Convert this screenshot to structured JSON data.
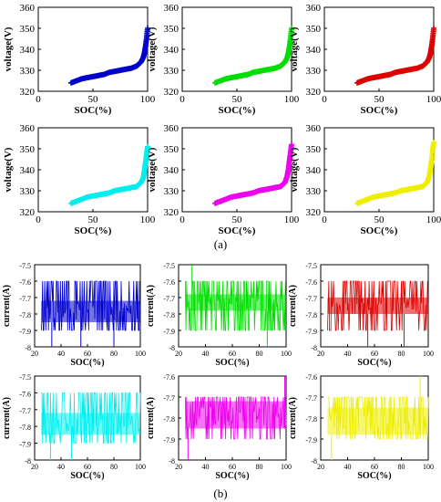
{
  "figure": {
    "panel_labels": [
      "(a)",
      "(b)"
    ]
  },
  "chart_data": [
    {
      "panel": "(a)",
      "type": "scatter",
      "color": "#0000cc",
      "xlabel": "SOC(%)",
      "ylabel": "voltage(V)",
      "xlim": [
        0,
        100
      ],
      "ylim": [
        320,
        360
      ],
      "xticks": [
        "0",
        "50",
        "100"
      ],
      "yticks": [
        "320",
        "330",
        "340",
        "350",
        "360"
      ],
      "x": [
        30,
        35,
        40,
        45,
        50,
        55,
        60,
        65,
        70,
        75,
        80,
        85,
        90,
        92,
        94,
        96,
        97,
        98,
        99,
        100
      ],
      "y": [
        324,
        325,
        326,
        326.5,
        327,
        327.5,
        328,
        329,
        329.5,
        330,
        330.5,
        331,
        332,
        333,
        334,
        336,
        338,
        341,
        345,
        350
      ]
    },
    {
      "panel": "(a)",
      "type": "scatter",
      "color": "#00dd00",
      "xlabel": "SOC(%)",
      "ylabel": "voltage(V)",
      "xlim": [
        0,
        100
      ],
      "ylim": [
        320,
        360
      ],
      "xticks": [
        "0",
        "50",
        "100"
      ],
      "yticks": [
        "320",
        "330",
        "340",
        "350",
        "360"
      ],
      "x": [
        30,
        35,
        40,
        45,
        50,
        55,
        60,
        65,
        70,
        75,
        80,
        85,
        90,
        92,
        94,
        96,
        97,
        98,
        99,
        100
      ],
      "y": [
        324,
        325,
        326,
        326.5,
        327,
        327.5,
        328,
        329,
        329.5,
        330,
        330.5,
        331,
        332,
        333,
        334,
        336,
        338,
        341,
        345,
        350
      ]
    },
    {
      "panel": "(a)",
      "type": "scatter",
      "color": "#dd0000",
      "xlabel": "SOC(%)",
      "ylabel": "voltage(V)",
      "xlim": [
        0,
        100
      ],
      "ylim": [
        320,
        360
      ],
      "xticks": [
        "0",
        "50",
        "100"
      ],
      "yticks": [
        "320",
        "330",
        "340",
        "350",
        "360"
      ],
      "x": [
        30,
        35,
        40,
        45,
        50,
        55,
        60,
        65,
        70,
        75,
        80,
        85,
        90,
        92,
        94,
        96,
        97,
        98,
        99,
        100
      ],
      "y": [
        324,
        325,
        326,
        326.5,
        327,
        327.5,
        328,
        329,
        329.5,
        330,
        330.5,
        331,
        332,
        333,
        334,
        336,
        338,
        341,
        345,
        350
      ]
    },
    {
      "panel": "(a)",
      "type": "scatter",
      "color": "#00eeee",
      "xlabel": "SOC(%)",
      "ylabel": "voltage(V)",
      "xlim": [
        0,
        100
      ],
      "ylim": [
        320,
        360
      ],
      "xticks": [
        "0",
        "50",
        "100"
      ],
      "yticks": [
        "320",
        "330",
        "340",
        "350",
        "360"
      ],
      "x": [
        30,
        35,
        40,
        45,
        50,
        55,
        60,
        65,
        70,
        75,
        80,
        85,
        90,
        92,
        94,
        96,
        97,
        98,
        99,
        100
      ],
      "y": [
        324,
        325,
        326,
        327,
        327.5,
        328,
        328.5,
        329,
        330,
        330.5,
        331,
        331.5,
        332,
        333,
        334,
        336,
        339,
        343,
        347,
        351
      ]
    },
    {
      "panel": "(a)",
      "type": "scatter",
      "color": "#ee00ee",
      "xlabel": "SOC(%)",
      "ylabel": "voltage(V)",
      "xlim": [
        0,
        100
      ],
      "ylim": [
        320,
        360
      ],
      "xticks": [
        "0",
        "50",
        "100"
      ],
      "yticks": [
        "320",
        "330",
        "340",
        "350",
        "360"
      ],
      "x": [
        30,
        35,
        40,
        45,
        50,
        55,
        60,
        65,
        70,
        75,
        80,
        85,
        90,
        92,
        94,
        96,
        97,
        98,
        99,
        100
      ],
      "y": [
        324,
        325,
        326,
        327,
        327.5,
        328,
        328.5,
        329,
        330,
        330.5,
        331,
        331.5,
        332,
        333,
        334,
        337,
        340,
        344,
        348,
        352
      ]
    },
    {
      "panel": "(a)",
      "type": "scatter",
      "color": "#eeee00",
      "xlabel": "SOC(%)",
      "ylabel": "voltage(V)",
      "xlim": [
        0,
        100
      ],
      "ylim": [
        320,
        360
      ],
      "xticks": [
        "0",
        "50",
        "100"
      ],
      "yticks": [
        "320",
        "330",
        "340",
        "350",
        "360"
      ],
      "x": [
        30,
        35,
        40,
        45,
        50,
        55,
        60,
        65,
        70,
        75,
        80,
        85,
        90,
        92,
        94,
        96,
        97,
        98,
        99,
        100
      ],
      "y": [
        324,
        325,
        326,
        327,
        327.5,
        328,
        328.5,
        329,
        330,
        330.5,
        331,
        331.5,
        332,
        333,
        334,
        337,
        340,
        344,
        349,
        353
      ]
    },
    {
      "panel": "(b)",
      "type": "line",
      "color": "#0000cc",
      "xlabel": "SOC(%)",
      "ylabel": "current(A)",
      "xlim": [
        20,
        100
      ],
      "ylim": [
        -8,
        -7.5
      ],
      "xticks": [
        "20",
        "40",
        "60",
        "80",
        "100"
      ],
      "yticks": [
        "-7.5",
        "-7.6",
        "-7.7",
        "-7.8",
        "-7.9",
        "-8"
      ],
      "x": [
        25,
        30,
        35,
        40,
        45,
        50,
        55,
        60,
        65,
        70,
        75,
        80,
        85,
        90,
        95,
        100
      ],
      "y_min": [
        -7.9,
        -7.9,
        -7.9,
        -7.9,
        -7.9,
        -7.9,
        -7.9,
        -7.9,
        -7.9,
        -7.9,
        -7.9,
        -7.9,
        -7.9,
        -7.9,
        -7.9,
        -7.9
      ],
      "y_max": [
        -7.6,
        -7.6,
        -7.6,
        -7.6,
        -7.6,
        -7.6,
        -7.6,
        -7.6,
        -7.6,
        -7.6,
        -7.6,
        -7.6,
        -7.6,
        -7.6,
        -7.6,
        -7.6
      ],
      "band": [
        -7.85,
        -7.72
      ],
      "spikes": [
        {
          "x": 33,
          "y": -8
        },
        {
          "x": 55,
          "y": -8
        },
        {
          "x": 80,
          "y": -8
        }
      ]
    },
    {
      "panel": "(b)",
      "type": "line",
      "color": "#00dd00",
      "xlabel": "SOC(%)",
      "ylabel": "current(A)",
      "xlim": [
        20,
        100
      ],
      "ylim": [
        -8,
        -7.5
      ],
      "xticks": [
        "20",
        "40",
        "60",
        "80",
        "100"
      ],
      "yticks": [
        "-7.5",
        "-7.6",
        "-7.7",
        "-7.8",
        "-7.9",
        "-8"
      ],
      "x": [
        25,
        30,
        35,
        40,
        45,
        50,
        55,
        60,
        65,
        70,
        75,
        80,
        85,
        90,
        95,
        100
      ],
      "y_min": [
        -7.9,
        -7.9,
        -7.9,
        -7.9,
        -7.9,
        -7.9,
        -7.9,
        -7.9,
        -7.9,
        -7.9,
        -7.9,
        -7.9,
        -7.9,
        -7.9,
        -7.9,
        -7.9
      ],
      "y_max": [
        -7.6,
        -7.6,
        -7.6,
        -7.6,
        -7.6,
        -7.6,
        -7.6,
        -7.6,
        -7.6,
        -7.6,
        -7.6,
        -7.6,
        -7.6,
        -7.6,
        -7.6,
        -7.6
      ],
      "band": [
        -7.78,
        -7.68
      ],
      "spikes": [
        {
          "x": 30,
          "y": -7.5
        },
        {
          "x": 86,
          "y": -8
        }
      ]
    },
    {
      "panel": "(b)",
      "type": "line",
      "color": "#dd0000",
      "xlabel": "SOC(%)",
      "ylabel": "current(A)",
      "xlim": [
        20,
        100
      ],
      "ylim": [
        -8,
        -7.5
      ],
      "xticks": [
        "20",
        "40",
        "60",
        "80",
        "100"
      ],
      "yticks": [
        "-7.5",
        "-7.6",
        "-7.7",
        "-7.8",
        "-7.9",
        "-8"
      ],
      "x": [
        25,
        30,
        35,
        40,
        45,
        50,
        55,
        60,
        65,
        70,
        75,
        80,
        85,
        90,
        95,
        100
      ],
      "y_min": [
        -7.9,
        -7.9,
        -7.9,
        -7.9,
        -7.9,
        -7.9,
        -7.9,
        -7.9,
        -7.9,
        -7.9,
        -7.9,
        -7.9,
        -7.9,
        -7.9,
        -7.9,
        -7.9
      ],
      "y_max": [
        -7.6,
        -7.6,
        -7.6,
        -7.6,
        -7.6,
        -7.6,
        -7.6,
        -7.6,
        -7.6,
        -7.6,
        -7.6,
        -7.6,
        -7.6,
        -7.6,
        -7.6,
        -7.6
      ],
      "band": [
        -7.8,
        -7.7
      ],
      "spikes": [
        {
          "x": 55,
          "y": -8
        },
        {
          "x": 82,
          "y": -8
        }
      ]
    },
    {
      "panel": "(b)",
      "type": "line",
      "color": "#00eeee",
      "xlabel": "SOC(%)",
      "ylabel": "current(A)",
      "xlim": [
        20,
        100
      ],
      "ylim": [
        -8,
        -7.5
      ],
      "xticks": [
        "20",
        "40",
        "60",
        "80",
        "100"
      ],
      "yticks": [
        "-7.5",
        "-7.6",
        "-7.7",
        "-7.8",
        "-7.9",
        "-8"
      ],
      "x": [
        25,
        30,
        35,
        40,
        45,
        50,
        55,
        60,
        65,
        70,
        75,
        80,
        85,
        90,
        95,
        100
      ],
      "y_min": [
        -7.9,
        -7.9,
        -7.9,
        -7.9,
        -7.9,
        -7.9,
        -7.9,
        -7.9,
        -7.9,
        -7.9,
        -7.9,
        -7.9,
        -7.9,
        -7.9,
        -7.9,
        -7.9
      ],
      "y_max": [
        -7.6,
        -7.6,
        -7.6,
        -7.6,
        -7.6,
        -7.6,
        -7.6,
        -7.6,
        -7.6,
        -7.6,
        -7.6,
        -7.6,
        -7.6,
        -7.6,
        -7.6,
        -7.6
      ],
      "band": [
        -7.85,
        -7.72
      ],
      "spikes": [
        {
          "x": 32,
          "y": -8
        },
        {
          "x": 48,
          "y": -8
        }
      ]
    },
    {
      "panel": "(b)",
      "type": "line",
      "color": "#ee00ee",
      "xlabel": "SOC(%)",
      "ylabel": "current(A)",
      "xlim": [
        20,
        100
      ],
      "ylim": [
        -8,
        -7.6
      ],
      "xticks": [
        "20",
        "40",
        "60",
        "80",
        "100"
      ],
      "yticks": [
        "-7.6",
        "-7.7",
        "-7.8",
        "-7.9",
        "-8"
      ],
      "x": [
        25,
        30,
        35,
        40,
        45,
        50,
        55,
        60,
        65,
        70,
        75,
        80,
        85,
        90,
        95,
        100
      ],
      "y_min": [
        -7.9,
        -7.9,
        -7.9,
        -7.9,
        -7.9,
        -7.9,
        -7.9,
        -7.9,
        -7.9,
        -7.9,
        -7.9,
        -7.9,
        -7.9,
        -7.9,
        -7.9,
        -7.9
      ],
      "y_max": [
        -7.7,
        -7.7,
        -7.7,
        -7.7,
        -7.7,
        -7.7,
        -7.7,
        -7.7,
        -7.7,
        -7.7,
        -7.7,
        -7.7,
        -7.7,
        -7.7,
        -7.7,
        -7.7
      ],
      "band": [
        -7.85,
        -7.72
      ],
      "spikes": [
        {
          "x": 27,
          "y": -8
        },
        {
          "x": 99,
          "y": -7.6
        }
      ]
    },
    {
      "panel": "(b)",
      "type": "line",
      "color": "#eeee00",
      "xlabel": "SOC(%)",
      "ylabel": "current(A)",
      "xlim": [
        20,
        100
      ],
      "ylim": [
        -8,
        -7.6
      ],
      "xticks": [
        "20",
        "40",
        "60",
        "80",
        "100"
      ],
      "yticks": [
        "-7.6",
        "-7.7",
        "-7.8",
        "-7.9",
        "-8"
      ],
      "x": [
        25,
        30,
        35,
        40,
        45,
        50,
        55,
        60,
        65,
        70,
        75,
        80,
        85,
        90,
        95,
        100
      ],
      "y_min": [
        -7.9,
        -7.9,
        -7.9,
        -7.9,
        -7.9,
        -7.9,
        -7.9,
        -7.9,
        -7.9,
        -7.9,
        -7.9,
        -7.9,
        -7.9,
        -7.9,
        -7.9,
        -7.9
      ],
      "y_max": [
        -7.7,
        -7.7,
        -7.7,
        -7.7,
        -7.7,
        -7.7,
        -7.7,
        -7.7,
        -7.7,
        -7.7,
        -7.7,
        -7.7,
        -7.7,
        -7.7,
        -7.7,
        -7.7
      ],
      "band": [
        -7.88,
        -7.75
      ],
      "spikes": [
        {
          "x": 28,
          "y": -8
        },
        {
          "x": 94,
          "y": -7.6
        }
      ]
    }
  ]
}
